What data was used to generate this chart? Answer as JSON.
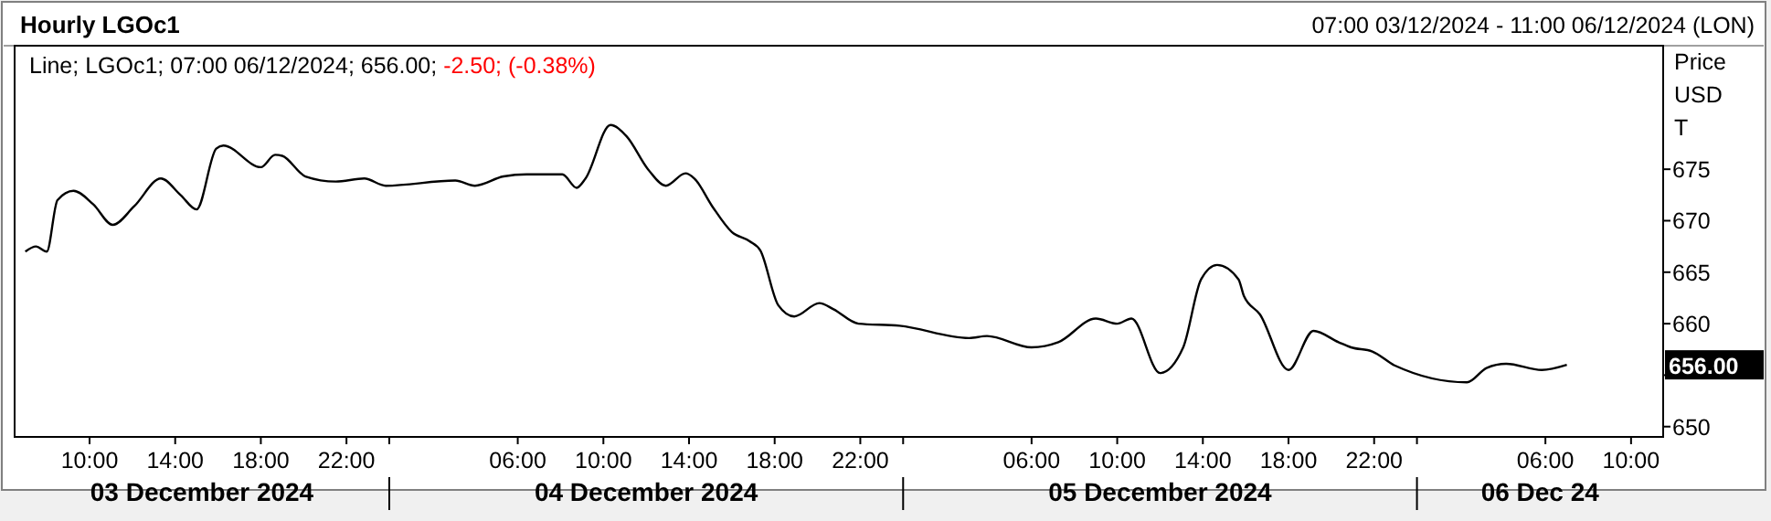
{
  "chart_data": {
    "type": "line",
    "title": "Hourly LGOc1",
    "subtitle": "Line; LGOc1; 07:00 06/12/2024; 656.00;",
    "ylabel": "Price USD T",
    "annotations": [
      "-2.50; (-0.38%)",
      "07:00 03/12/2024 - 11:00 06/12/2024 (LON)",
      "656.00",
      "03 December 2024",
      "04 December 2024",
      "05 December 2024",
      "06 Dec 24"
    ],
    "xlim": [
      "2024-12-03T06:30",
      "2024-12-06T11:30"
    ],
    "xticks": [
      {
        "value": "2024-12-03T10:00",
        "label": "10:00"
      },
      {
        "value": "2024-12-03T14:00",
        "label": "14:00"
      },
      {
        "value": "2024-12-03T18:00",
        "label": "18:00"
      },
      {
        "value": "2024-12-03T22:00",
        "label": "22:00"
      },
      {
        "value": "2024-12-04T00:00",
        "label": null
      },
      {
        "value": "2024-12-04T06:00",
        "label": "06:00"
      },
      {
        "value": "2024-12-04T10:00",
        "label": "10:00"
      },
      {
        "value": "2024-12-04T14:00",
        "label": "14:00"
      },
      {
        "value": "2024-12-04T18:00",
        "label": "18:00"
      },
      {
        "value": "2024-12-04T22:00",
        "label": "22:00"
      },
      {
        "value": "2024-12-05T00:00",
        "label": null
      },
      {
        "value": "2024-12-05T06:00",
        "label": "06:00"
      },
      {
        "value": "2024-12-05T10:00",
        "label": "10:00"
      },
      {
        "value": "2024-12-05T14:00",
        "label": "14:00"
      },
      {
        "value": "2024-12-05T18:00",
        "label": "18:00"
      },
      {
        "value": "2024-12-05T22:00",
        "label": "22:00"
      },
      {
        "value": "2024-12-06T00:00",
        "label": null
      },
      {
        "value": "2024-12-06T06:00",
        "label": "06:00"
      },
      {
        "value": "2024-12-06T10:00",
        "label": "10:00"
      }
    ],
    "ylim": [
      649,
      687
    ],
    "yticks": [
      650,
      {
        "value": 655,
        "label": null
      },
      660,
      665,
      670,
      675
    ],
    "grid": false,
    "series": [
      {
        "color": "#000000",
        "x": [
          "2024-12-03T07:00",
          "2024-12-03T07:30",
          "2024-12-03T08:00",
          "2024-12-03T08:30",
          "2024-12-03T09:15",
          "2024-12-03T10:10",
          "2024-12-03T11:05",
          "2024-12-03T12:05",
          "2024-12-03T13:20",
          "2024-12-03T14:15",
          "2024-12-03T15:00",
          "2024-12-03T15:55",
          "2024-12-03T16:15",
          "2024-12-03T18:00",
          "2024-12-03T18:40",
          "2024-12-03T19:00",
          "2024-12-03T20:05",
          "2024-12-03T21:30",
          "2024-12-03T22:50",
          "2024-12-03T23:50",
          "2024-12-04T03:05",
          "2024-12-04T04:00",
          "2024-12-04T05:20",
          "2024-12-04T06:25",
          "2024-12-04T08:05",
          "2024-12-04T08:45",
          "2024-12-04T09:10",
          "2024-12-04T10:20",
          "2024-12-04T11:05",
          "2024-12-04T12:05",
          "2024-12-04T12:55",
          "2024-12-04T13:50",
          "2024-12-04T14:15",
          "2024-12-04T15:05",
          "2024-12-04T16:00",
          "2024-12-04T16:50",
          "2024-12-04T17:20",
          "2024-12-04T18:10",
          "2024-12-04T18:55",
          "2024-12-04T20:05",
          "2024-12-04T20:45",
          "2024-12-04T21:55",
          "2024-12-04T23:50",
          "2024-12-05T03:05",
          "2024-12-05T03:55",
          "2024-12-05T06:00",
          "2024-12-05T07:15",
          "2024-12-05T09:00",
          "2024-12-05T10:00",
          "2024-12-05T10:40",
          "2024-12-05T12:00",
          "2024-12-05T13:05",
          "2024-12-05T13:55",
          "2024-12-05T14:40",
          "2024-12-05T15:40",
          "2024-12-05T15:55",
          "2024-12-05T16:40",
          "2024-12-05T18:00",
          "2024-12-05T19:10",
          "2024-12-05T20:20",
          "2024-12-05T20:55",
          "2024-12-05T21:55",
          "2024-12-05T23:00",
          "2024-12-06T02:20",
          "2024-12-06T03:15",
          "2024-12-06T04:10",
          "2024-12-06T05:50",
          "2024-12-06T07:00"
        ],
        "values": [
          667.0,
          667.5,
          667.0,
          672.0,
          672.9,
          671.6,
          669.6,
          671.4,
          674.1,
          672.5,
          671.1,
          677.0,
          677.3,
          675.2,
          676.4,
          676.3,
          674.3,
          673.8,
          674.1,
          673.4,
          673.9,
          673.4,
          674.3,
          674.5,
          674.5,
          673.2,
          674.1,
          679.3,
          678.2,
          675.0,
          673.4,
          674.6,
          674.1,
          671.4,
          668.9,
          668.0,
          667.1,
          661.8,
          660.7,
          662.0,
          661.4,
          660.0,
          659.8,
          658.6,
          658.8,
          657.7,
          658.2,
          660.5,
          660.0,
          660.5,
          655.2,
          657.7,
          664.3,
          665.7,
          664.3,
          662.7,
          660.9,
          655.5,
          659.3,
          658.2,
          657.7,
          657.3,
          655.9,
          654.3,
          655.7,
          656.1,
          655.5,
          656.0
        ]
      }
    ]
  }
}
